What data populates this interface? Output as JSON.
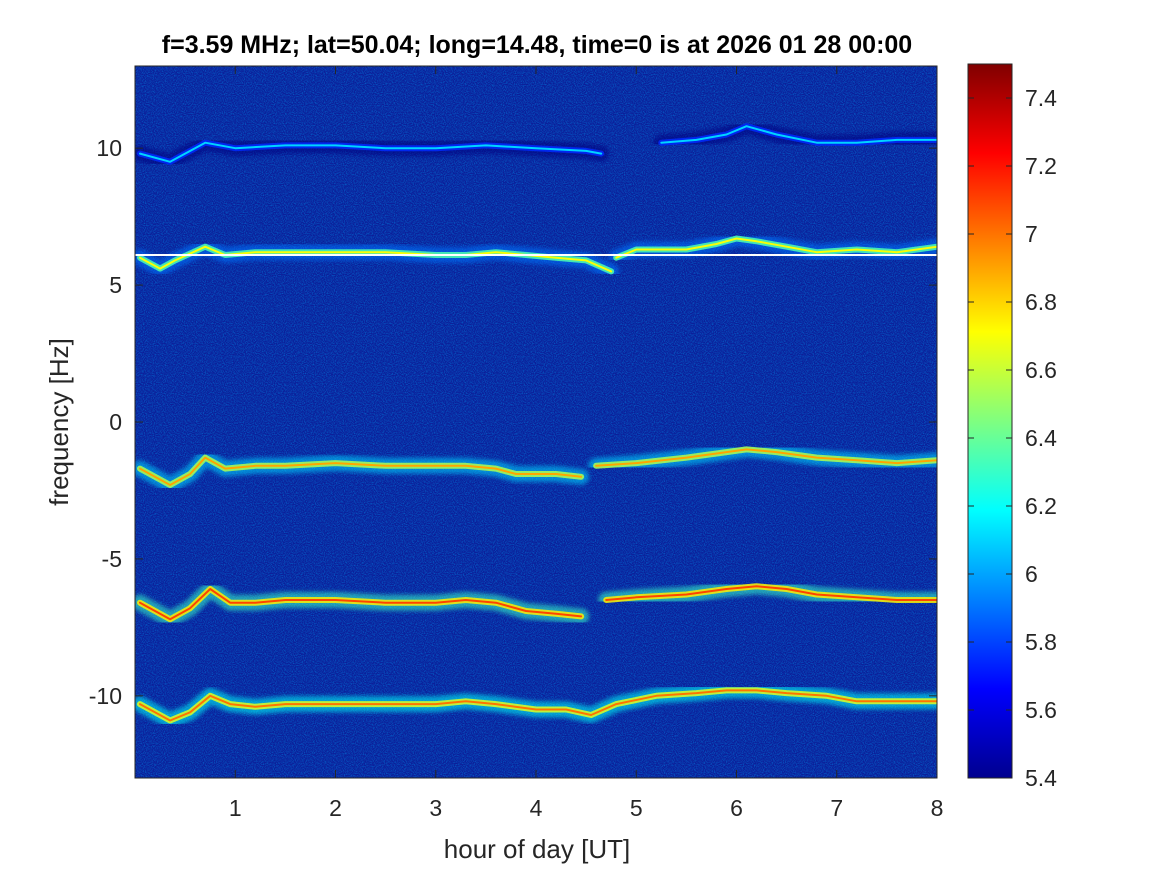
{
  "chart_data": {
    "type": "heatmap",
    "title": "f=3.59 MHz;  lat=50.04; long=14.48, time=0 is at 2026 01 28 00:00",
    "xlabel": "hour of day [UT]",
    "ylabel": "frequency [Hz]",
    "xlim": [
      0,
      8
    ],
    "ylim": [
      -13,
      13
    ],
    "xticks": [
      1,
      2,
      3,
      4,
      5,
      6,
      7,
      8
    ],
    "xtick_labels": [
      "1",
      "2",
      "3",
      "4",
      "5",
      "6",
      "7",
      "8"
    ],
    "yticks": [
      10,
      5,
      0,
      -5,
      -10
    ],
    "ytick_labels": [
      "10",
      "5",
      "0",
      "-5",
      "-10"
    ],
    "colorbar": {
      "colormap": "jet",
      "limits": [
        5.4,
        7.5
      ],
      "ticks": [
        7.4,
        7.2,
        7.0,
        6.8,
        6.6,
        6.4,
        6.2,
        6.0,
        5.8,
        5.6,
        5.4
      ],
      "tick_labels": [
        "7.4",
        "7.2",
        "7",
        "6.8",
        "6.6",
        "6.4",
        "6.2",
        "6",
        "5.8",
        "5.6",
        "5.4"
      ]
    },
    "background_level": 5.5,
    "reference_line": {
      "frequency": 6.1,
      "x_range": [
        0,
        8
      ],
      "color": "#ffffff"
    },
    "traces": [
      {
        "name": "",
        "intensity": 6.1,
        "points": [
          [
            0.05,
            9.8
          ],
          [
            0.35,
            9.5
          ],
          [
            0.7,
            10.2
          ],
          [
            1.0,
            10.0
          ],
          [
            1.5,
            10.1
          ],
          [
            2.0,
            10.1
          ],
          [
            2.5,
            10.0
          ],
          [
            3.0,
            10.0
          ],
          [
            3.5,
            10.1
          ],
          [
            4.0,
            10.0
          ],
          [
            4.5,
            9.9
          ],
          [
            4.65,
            9.8
          ],
          [
            null,
            null
          ],
          [
            5.25,
            10.2
          ],
          [
            5.6,
            10.3
          ],
          [
            5.9,
            10.5
          ],
          [
            6.1,
            10.8
          ],
          [
            6.4,
            10.5
          ],
          [
            6.8,
            10.2
          ],
          [
            7.2,
            10.2
          ],
          [
            7.6,
            10.3
          ],
          [
            8.0,
            10.3
          ]
        ]
      },
      {
        "name": "",
        "intensity": 6.7,
        "points": [
          [
            0.05,
            6.0
          ],
          [
            0.25,
            5.6
          ],
          [
            0.4,
            5.9
          ],
          [
            0.7,
            6.4
          ],
          [
            0.9,
            6.1
          ],
          [
            1.2,
            6.2
          ],
          [
            1.5,
            6.2
          ],
          [
            2.0,
            6.2
          ],
          [
            2.5,
            6.2
          ],
          [
            3.0,
            6.1
          ],
          [
            3.3,
            6.1
          ],
          [
            3.6,
            6.2
          ],
          [
            3.9,
            6.1
          ],
          [
            4.2,
            6.0
          ],
          [
            4.5,
            5.9
          ],
          [
            4.75,
            5.5
          ],
          [
            null,
            null
          ],
          [
            4.8,
            6.0
          ],
          [
            5.0,
            6.3
          ],
          [
            5.5,
            6.3
          ],
          [
            5.8,
            6.5
          ],
          [
            6.0,
            6.7
          ],
          [
            6.2,
            6.6
          ],
          [
            6.5,
            6.4
          ],
          [
            6.8,
            6.2
          ],
          [
            7.2,
            6.3
          ],
          [
            7.6,
            6.2
          ],
          [
            8.0,
            6.4
          ]
        ]
      },
      {
        "name": "",
        "intensity": 6.9,
        "points": [
          [
            0.05,
            -1.7
          ],
          [
            0.35,
            -2.3
          ],
          [
            0.55,
            -1.9
          ],
          [
            0.7,
            -1.3
          ],
          [
            0.9,
            -1.7
          ],
          [
            1.2,
            -1.6
          ],
          [
            1.5,
            -1.6
          ],
          [
            2.0,
            -1.5
          ],
          [
            2.5,
            -1.6
          ],
          [
            3.0,
            -1.6
          ],
          [
            3.3,
            -1.6
          ],
          [
            3.6,
            -1.7
          ],
          [
            3.8,
            -1.9
          ],
          [
            4.2,
            -1.9
          ],
          [
            4.45,
            -2.0
          ],
          [
            null,
            null
          ],
          [
            4.6,
            -1.6
          ],
          [
            5.0,
            -1.5
          ],
          [
            5.5,
            -1.3
          ],
          [
            5.9,
            -1.1
          ],
          [
            6.1,
            -1.0
          ],
          [
            6.4,
            -1.1
          ],
          [
            6.8,
            -1.3
          ],
          [
            7.2,
            -1.4
          ],
          [
            7.6,
            -1.5
          ],
          [
            8.0,
            -1.4
          ]
        ]
      },
      {
        "name": "",
        "intensity": 7.1,
        "points": [
          [
            0.05,
            -6.6
          ],
          [
            0.35,
            -7.2
          ],
          [
            0.55,
            -6.8
          ],
          [
            0.75,
            -6.1
          ],
          [
            0.95,
            -6.6
          ],
          [
            1.2,
            -6.6
          ],
          [
            1.5,
            -6.5
          ],
          [
            2.0,
            -6.5
          ],
          [
            2.5,
            -6.6
          ],
          [
            3.0,
            -6.6
          ],
          [
            3.3,
            -6.5
          ],
          [
            3.6,
            -6.6
          ],
          [
            3.9,
            -6.9
          ],
          [
            4.2,
            -7.0
          ],
          [
            4.45,
            -7.1
          ],
          [
            null,
            null
          ],
          [
            4.7,
            -6.5
          ],
          [
            5.0,
            -6.4
          ],
          [
            5.5,
            -6.3
          ],
          [
            5.9,
            -6.1
          ],
          [
            6.2,
            -6.0
          ],
          [
            6.5,
            -6.1
          ],
          [
            6.8,
            -6.3
          ],
          [
            7.2,
            -6.4
          ],
          [
            7.6,
            -6.5
          ],
          [
            8.0,
            -6.5
          ]
        ]
      },
      {
        "name": "",
        "intensity": 7.0,
        "points": [
          [
            0.05,
            -10.3
          ],
          [
            0.35,
            -10.9
          ],
          [
            0.55,
            -10.6
          ],
          [
            0.75,
            -10.0
          ],
          [
            0.95,
            -10.3
          ],
          [
            1.2,
            -10.4
          ],
          [
            1.5,
            -10.3
          ],
          [
            2.0,
            -10.3
          ],
          [
            2.5,
            -10.3
          ],
          [
            3.0,
            -10.3
          ],
          [
            3.3,
            -10.2
          ],
          [
            3.6,
            -10.3
          ],
          [
            4.0,
            -10.5
          ],
          [
            4.3,
            -10.5
          ],
          [
            4.55,
            -10.7
          ],
          [
            4.8,
            -10.3
          ],
          [
            5.2,
            -10.0
          ],
          [
            5.6,
            -9.9
          ],
          [
            5.9,
            -9.8
          ],
          [
            6.2,
            -9.8
          ],
          [
            6.5,
            -9.9
          ],
          [
            6.9,
            -10.0
          ],
          [
            7.2,
            -10.2
          ],
          [
            7.6,
            -10.2
          ],
          [
            8.0,
            -10.2
          ]
        ]
      }
    ]
  }
}
